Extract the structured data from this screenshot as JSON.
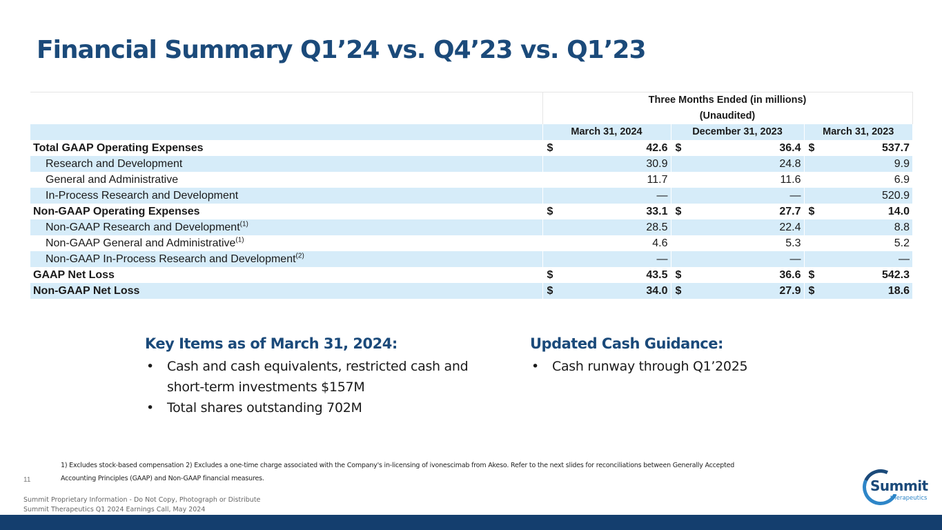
{
  "title": "Financial Summary Q1’24 vs. Q4’23 vs. Q1’23",
  "table": {
    "header_line1": "Three Months Ended (in millions)",
    "header_line2": "(Unaudited)",
    "columns": [
      "March 31, 2024",
      "December 31, 2023",
      "March 31, 2023"
    ],
    "rows": [
      {
        "label": "Total GAAP Operating Expenses",
        "sup": "",
        "bold": true,
        "indent": false,
        "blue": false,
        "cur": [
          "$",
          "$",
          "$"
        ],
        "values": [
          "42.6",
          "36.4",
          "537.7"
        ]
      },
      {
        "label": "Research and Development",
        "sup": "",
        "bold": false,
        "indent": true,
        "blue": true,
        "cur": [
          "",
          "",
          ""
        ],
        "values": [
          "30.9",
          "24.8",
          "9.9"
        ]
      },
      {
        "label": "General and Administrative",
        "sup": "",
        "bold": false,
        "indent": true,
        "blue": false,
        "cur": [
          "",
          "",
          ""
        ],
        "values": [
          "11.7",
          "11.6",
          "6.9"
        ]
      },
      {
        "label": "In-Process Research and Development",
        "sup": "",
        "bold": false,
        "indent": true,
        "blue": true,
        "cur": [
          "",
          "",
          ""
        ],
        "values": [
          "—",
          "—",
          "520.9"
        ]
      },
      {
        "label": "Non-GAAP Operating Expenses",
        "sup": "",
        "bold": true,
        "indent": false,
        "blue": false,
        "cur": [
          "$",
          "$",
          "$"
        ],
        "values": [
          "33.1",
          "27.7",
          "14.0"
        ]
      },
      {
        "label": "Non-GAAP Research and Development",
        "sup": "(1)",
        "bold": false,
        "indent": true,
        "blue": true,
        "cur": [
          "",
          "",
          ""
        ],
        "values": [
          "28.5",
          "22.4",
          "8.8"
        ]
      },
      {
        "label": "Non-GAAP General and Administrative",
        "sup": "(1)",
        "bold": false,
        "indent": true,
        "blue": false,
        "cur": [
          "",
          "",
          ""
        ],
        "values": [
          "4.6",
          "5.3",
          "5.2"
        ]
      },
      {
        "label": "Non-GAAP In-Process Research and Development",
        "sup": "(2)",
        "bold": false,
        "indent": true,
        "blue": true,
        "cur": [
          "",
          "",
          ""
        ],
        "values": [
          "—",
          "—",
          "—"
        ]
      },
      {
        "label": "GAAP Net Loss",
        "sup": "",
        "bold": true,
        "indent": false,
        "blue": false,
        "cur": [
          "$",
          "$",
          "$"
        ],
        "values": [
          "43.5",
          "36.6",
          "542.3"
        ]
      },
      {
        "label": "Non-GAAP Net Loss",
        "sup": "",
        "bold": true,
        "indent": false,
        "blue": true,
        "cur": [
          "$",
          "$",
          "$"
        ],
        "values": [
          "34.0",
          "27.9",
          "18.6"
        ]
      }
    ]
  },
  "key_items": {
    "heading": "Key Items as of March 31, 2024:",
    "bullets": [
      "Cash and cash equivalents, restricted cash and short-term investments $157M",
      "Total shares outstanding 702M"
    ]
  },
  "cash_guidance": {
    "heading": "Updated Cash Guidance:",
    "bullets": [
      "Cash runway through Q1’2025"
    ]
  },
  "footnote": "1) Excludes stock-based compensation 2) Excludes a one-time charge associated with the Company's in-licensing of ivonescimab from Akeso. Refer to the next slides for reconciliations between Generally Accepted Accounting Principles (GAAP) and Non-GAAP financial measures.",
  "page_number": "11",
  "confidential_line1": "Summit Proprietary Information - Do Not Copy, Photograph or Distribute",
  "confidential_line2": "Summit Therapeutics Q1 2024 Earnings Call, May 2024",
  "logo": {
    "name": "Summit",
    "sub": "therapeutics"
  },
  "colors": {
    "title": "#1b4a7a",
    "row_highlight": "#d6ecf9",
    "footer_bar": "#143e6e",
    "logo_accent": "#2e86c8"
  }
}
